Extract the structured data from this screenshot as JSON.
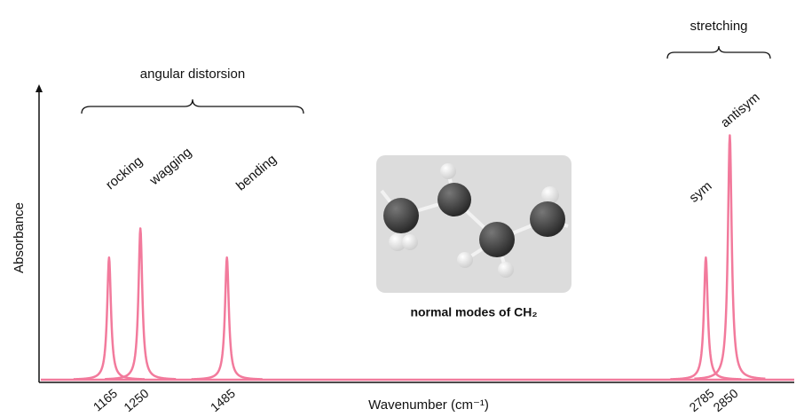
{
  "chart_data": {
    "type": "line",
    "xlabel": "Wavenumber (cm⁻¹)",
    "ylabel": "Absorbance",
    "x": [
      1165,
      1250,
      1485,
      2785,
      2850
    ],
    "values": [
      0.42,
      0.52,
      0.42,
      0.42,
      0.84
    ],
    "peak_labels": [
      "rocking",
      "wagging",
      "bending",
      "sym",
      "antisym"
    ],
    "xticks": [
      1165,
      1250,
      1485,
      2785,
      2850
    ],
    "xlim": [
      975,
      3025
    ],
    "ylim": [
      0,
      1
    ],
    "color": "#f27a9c",
    "groups": [
      {
        "label": "angular distorsion"
      },
      {
        "label": "stretching"
      }
    ],
    "inset_caption": "normal modes of CH₂"
  }
}
